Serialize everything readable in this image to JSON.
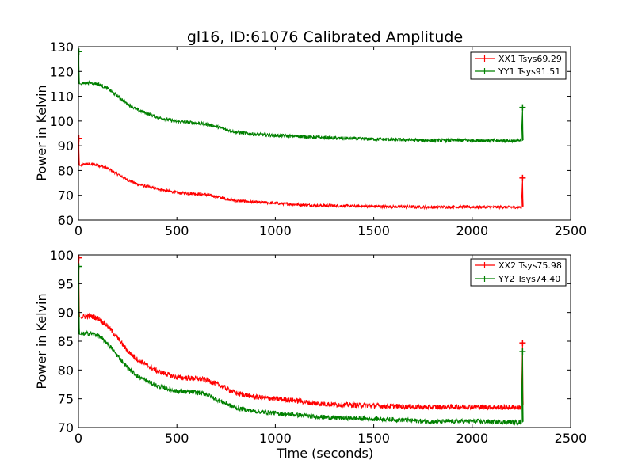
{
  "figure": {
    "title": "gl16, ID:61076 Calibrated Amplitude"
  },
  "chart_data": [
    {
      "type": "line",
      "title": "gl16, ID:61076 Calibrated Amplitude",
      "xlabel": "",
      "ylabel": "Power in Kelvin",
      "xlim": [
        0,
        2500
      ],
      "ylim": [
        60,
        130
      ],
      "xticks": [
        0,
        500,
        1000,
        1500,
        2000,
        2500
      ],
      "yticks": [
        60,
        70,
        80,
        90,
        100,
        110,
        120,
        130
      ],
      "legend_position": "upper right",
      "grid": false,
      "series": [
        {
          "name": "XX1 Tsys69.29",
          "color": "#ff0000",
          "x": [
            0,
            5,
            10,
            30,
            60,
            100,
            150,
            200,
            250,
            300,
            400,
            500,
            600,
            650,
            700,
            800,
            900,
            1000,
            1100,
            1200,
            1300,
            1400,
            1500,
            1600,
            1700,
            1800,
            1900,
            2000,
            2100,
            2200,
            2250,
            2256,
            2258,
            2260
          ],
          "y": [
            93,
            82,
            82,
            82.5,
            82.6,
            82.2,
            80.8,
            78.5,
            76.2,
            74.5,
            72.6,
            71.0,
            70.6,
            70.2,
            69.5,
            67.8,
            67.2,
            66.8,
            66.3,
            65.9,
            65.8,
            65.6,
            65.5,
            65.4,
            65.3,
            65.2,
            65.3,
            65.3,
            65.2,
            65.2,
            65.2,
            77,
            66,
            65.2
          ],
          "noise": 0.6
        },
        {
          "name": "YY1 Tsys91.51",
          "color": "#008000",
          "x": [
            0,
            5,
            10,
            30,
            60,
            100,
            150,
            200,
            250,
            300,
            400,
            500,
            600,
            650,
            700,
            800,
            900,
            1000,
            1100,
            1200,
            1300,
            1400,
            1500,
            1600,
            1700,
            1800,
            1900,
            2000,
            2100,
            2200,
            2250,
            2256,
            2258,
            2260
          ],
          "y": [
            128,
            115,
            115,
            115.3,
            115.5,
            115.0,
            113.0,
            110.0,
            106.8,
            104.5,
            101.5,
            99.8,
            99.2,
            98.7,
            97.8,
            95.5,
            94.6,
            94.2,
            93.9,
            93.5,
            93.1,
            92.9,
            92.7,
            92.5,
            92.3,
            92.1,
            92.2,
            92.2,
            92.1,
            92.0,
            92.0,
            105.5,
            93,
            92.0
          ],
          "noise": 0.7
        }
      ]
    },
    {
      "type": "line",
      "xlabel": "Time (seconds)",
      "ylabel": "Power in Kelvin",
      "xlim": [
        0,
        2500
      ],
      "ylim": [
        70,
        100
      ],
      "xticks": [
        0,
        500,
        1000,
        1500,
        2000,
        2500
      ],
      "yticks": [
        70,
        75,
        80,
        85,
        90,
        95,
        100
      ],
      "legend_position": "upper right",
      "grid": false,
      "series": [
        {
          "name": "XX2 Tsys75.98",
          "color": "#ff0000",
          "x": [
            0,
            5,
            10,
            30,
            60,
            100,
            150,
            200,
            250,
            300,
            400,
            500,
            600,
            650,
            700,
            800,
            900,
            1000,
            1100,
            1200,
            1300,
            1400,
            1500,
            1600,
            1700,
            1800,
            1900,
            2000,
            2100,
            2200,
            2250,
            2256,
            2258,
            2260
          ],
          "y": [
            99.5,
            89.2,
            89.2,
            89.3,
            89.4,
            89.0,
            87.6,
            85.5,
            83.3,
            81.8,
            79.8,
            78.7,
            78.5,
            78.3,
            77.6,
            76.0,
            75.3,
            75.0,
            74.7,
            74.2,
            74.0,
            73.9,
            73.8,
            73.7,
            73.6,
            73.5,
            73.6,
            73.6,
            73.5,
            73.5,
            73.5,
            84.7,
            74,
            73.5
          ],
          "noise": 0.45
        },
        {
          "name": "YY2 Tsys74.40",
          "color": "#008000",
          "x": [
            0,
            5,
            10,
            30,
            60,
            100,
            150,
            200,
            250,
            300,
            400,
            500,
            600,
            650,
            700,
            800,
            900,
            1000,
            1100,
            1200,
            1300,
            1400,
            1500,
            1600,
            1700,
            1800,
            1900,
            2000,
            2100,
            2200,
            2250,
            2256,
            2258,
            2260
          ],
          "y": [
            98,
            86.2,
            86.2,
            86.3,
            86.4,
            86.0,
            84.6,
            82.4,
            80.4,
            78.9,
            77.2,
            76.3,
            76.1,
            75.8,
            74.9,
            73.4,
            72.8,
            72.5,
            72.2,
            71.9,
            71.7,
            71.6,
            71.5,
            71.4,
            71.2,
            71.0,
            71.1,
            71.1,
            71.0,
            70.9,
            70.9,
            83.2,
            71.5,
            70.9
          ],
          "noise": 0.4
        }
      ]
    }
  ]
}
